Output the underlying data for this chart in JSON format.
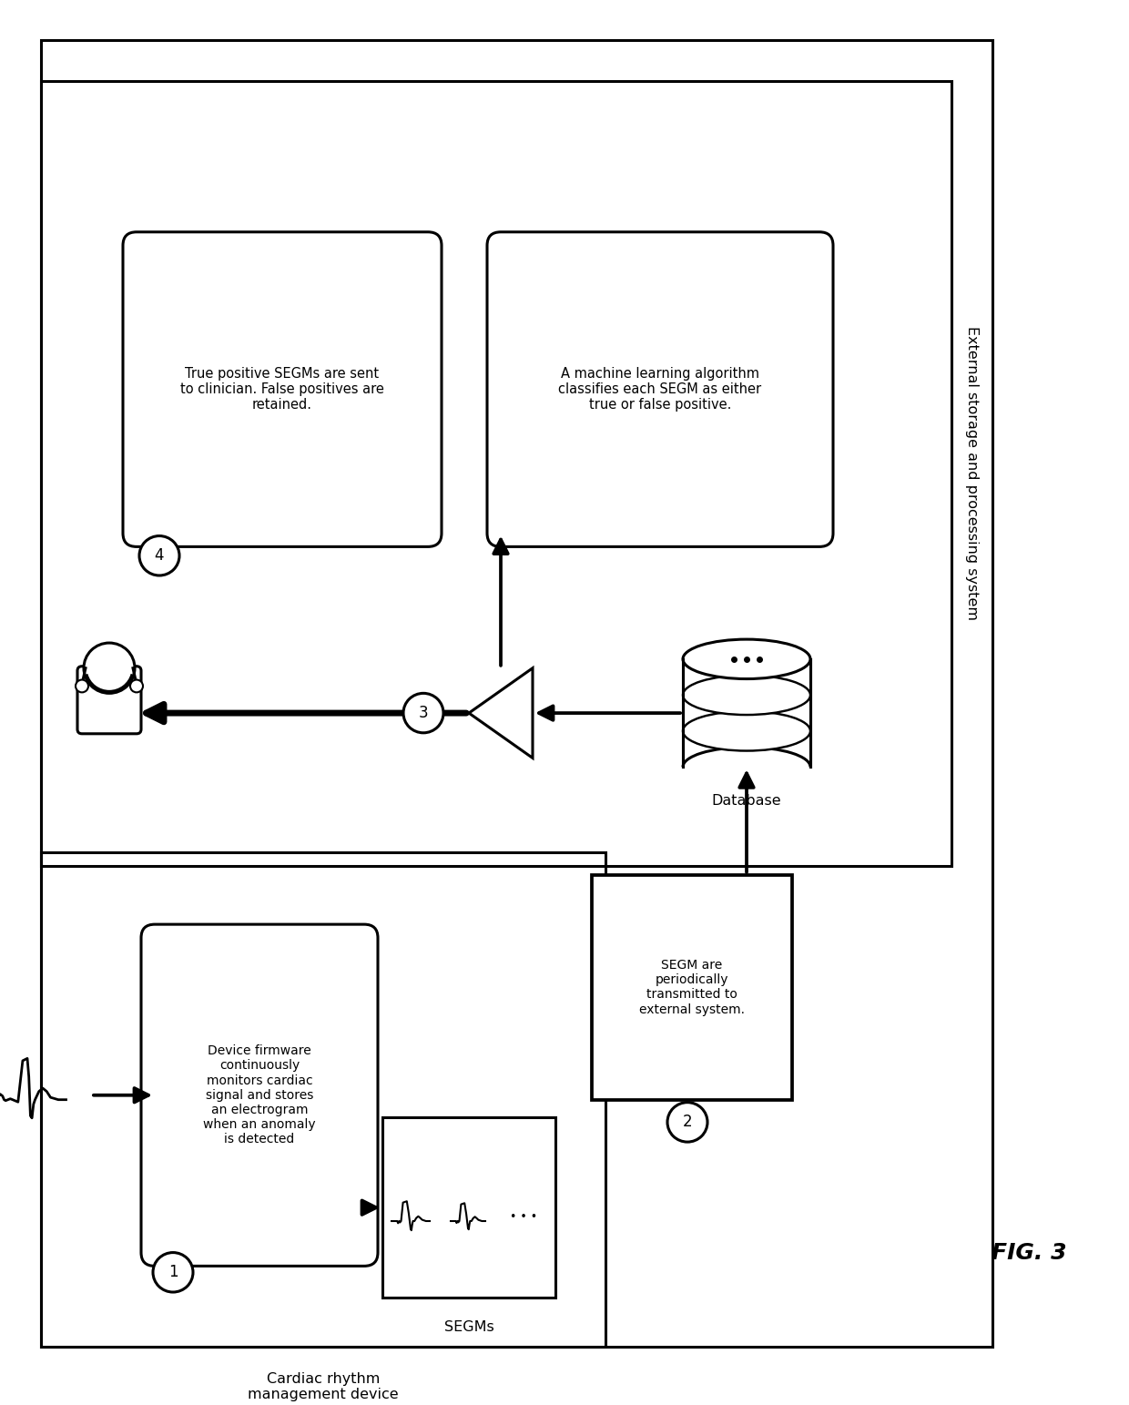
{
  "fig_label": "FIG. 3",
  "background_color": "#ffffff",
  "box_step1_text": "Device firmware\ncontinuously\nmonitors cardiac\nsignal and stores\nan electrogram\nwhen an anomaly\nis detected",
  "box_step2_text": "SEGM are\nperiodically\ntransmitted to\nexternal system.",
  "box_step3_text": "A machine learning algorithm\nclassifies each SEGM as either\ntrue or false positive.",
  "box_step4_text": "True positive SEGMs are sent\nto clinician. False positives are\nretained.",
  "label_cardiac": "Cardiac rhythm\nmanagement device",
  "label_external": "External storage and processing system",
  "label_database": "Database",
  "label_segms": "SEGMs",
  "step_numbers": [
    "1",
    "2",
    "3",
    "4"
  ]
}
